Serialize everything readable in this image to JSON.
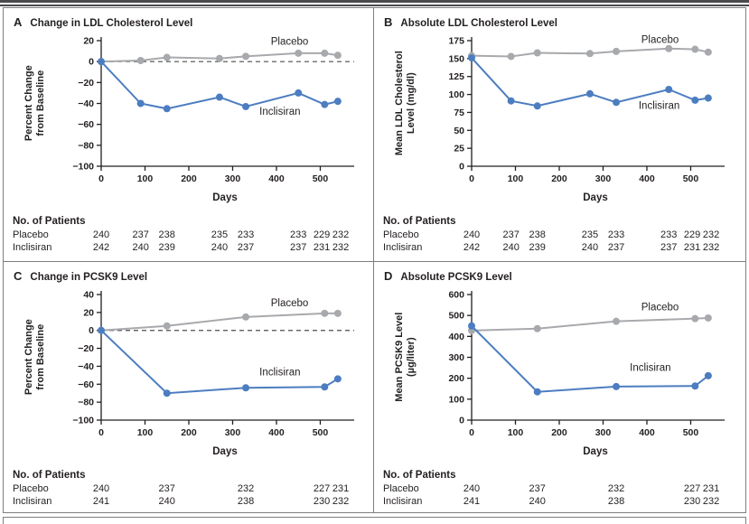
{
  "figure_colors": {
    "placebo": "#a7a9ac",
    "inclisiran": "#4c7dc0",
    "axis": "#231f20",
    "frame": "#7d7f82"
  },
  "chart_data": [
    {
      "panel_letter": "A",
      "title": "Change in LDL Cholesterol Level",
      "type": "line",
      "ylabel_lines": [
        "Percent Change",
        "from Baseline"
      ],
      "xlabel": "Days",
      "x": [
        0,
        90,
        150,
        270,
        330,
        450,
        510,
        540
      ],
      "xlim": [
        0,
        565
      ],
      "xticks": [
        0,
        100,
        200,
        300,
        400,
        500
      ],
      "ylim": [
        -100,
        20
      ],
      "yticks": [
        20,
        0,
        -20,
        -40,
        -60,
        -80,
        -100
      ],
      "zero_line_dashed": true,
      "series": [
        {
          "name": "Placebo",
          "color": "#a7a9ac",
          "values": [
            0,
            1,
            4,
            3,
            5,
            8,
            8,
            6
          ],
          "label_at": {
            "x": 430,
            "y": 16
          }
        },
        {
          "name": "Inclisiran",
          "color": "#4c7dc0",
          "values": [
            0,
            -40,
            -45,
            -34,
            -43,
            -30,
            -41,
            -38
          ],
          "label_at": {
            "x": 408,
            "y": -51
          }
        }
      ],
      "patients": {
        "header": "No. of Patients",
        "columns_days": [
          0,
          90,
          150,
          270,
          330,
          450,
          510,
          540
        ],
        "rows": [
          {
            "label": "Placebo",
            "values": [
              240,
              237,
              238,
              235,
              233,
              233,
              229,
              232
            ]
          },
          {
            "label": "Inclisiran",
            "values": [
              242,
              240,
              239,
              240,
              237,
              237,
              231,
              232
            ]
          }
        ]
      }
    },
    {
      "panel_letter": "B",
      "title": "Absolute LDL Cholesterol Level",
      "type": "line",
      "ylabel_lines": [
        "Mean LDL Cholesterol",
        "Level (mg/dl)"
      ],
      "xlabel": "Days",
      "x": [
        0,
        90,
        150,
        270,
        330,
        450,
        510,
        540
      ],
      "xlim": [
        0,
        565
      ],
      "xticks": [
        0,
        100,
        200,
        300,
        400,
        500
      ],
      "ylim": [
        0,
        175
      ],
      "yticks": [
        175,
        150,
        125,
        100,
        75,
        50,
        25,
        0
      ],
      "zero_line_dashed": false,
      "series": [
        {
          "name": "Placebo",
          "color": "#a7a9ac",
          "values": [
            154,
            153,
            158,
            157,
            160,
            164,
            163,
            159
          ],
          "label_at": {
            "x": 430,
            "y": 172
          }
        },
        {
          "name": "Inclisiran",
          "color": "#4c7dc0",
          "values": [
            151,
            91,
            84,
            101,
            89,
            107,
            92,
            95
          ],
          "label_at": {
            "x": 428,
            "y": 80
          }
        }
      ],
      "patients": {
        "header": "No. of Patients",
        "columns_days": [
          0,
          90,
          150,
          270,
          330,
          450,
          510,
          540
        ],
        "rows": [
          {
            "label": "Placebo",
            "values": [
              240,
              237,
              238,
              235,
              233,
              233,
              229,
              232
            ]
          },
          {
            "label": "Inclisiran",
            "values": [
              242,
              240,
              239,
              240,
              237,
              237,
              231,
              232
            ]
          }
        ]
      }
    },
    {
      "panel_letter": "C",
      "title": "Change in PCSK9 Level",
      "type": "line",
      "ylabel_lines": [
        "Percent Change",
        "from Baseline"
      ],
      "xlabel": "Days",
      "x": [
        0,
        150,
        330,
        510,
        540
      ],
      "xlim": [
        0,
        565
      ],
      "xticks": [
        0,
        100,
        200,
        300,
        400,
        500
      ],
      "ylim": [
        -100,
        40
      ],
      "yticks": [
        40,
        20,
        0,
        -20,
        -40,
        -60,
        -80,
        -100
      ],
      "zero_line_dashed": true,
      "series": [
        {
          "name": "Placebo",
          "color": "#a7a9ac",
          "values": [
            0,
            5,
            15,
            19,
            19
          ],
          "label_at": {
            "x": 430,
            "y": 27
          }
        },
        {
          "name": "Inclisiran",
          "color": "#4c7dc0",
          "values": [
            0,
            -70,
            -64,
            -63,
            -54
          ],
          "label_at": {
            "x": 408,
            "y": -50
          }
        }
      ],
      "patients": {
        "header": "No. of Patients",
        "columns_days": [
          0,
          150,
          330,
          510,
          540
        ],
        "rows": [
          {
            "label": "Placebo",
            "values": [
              240,
              237,
              232,
              227,
              231
            ]
          },
          {
            "label": "Inclisiran",
            "values": [
              241,
              240,
              238,
              230,
              232
            ]
          }
        ]
      }
    },
    {
      "panel_letter": "D",
      "title": "Absolute PCSK9 Level",
      "type": "line",
      "ylabel_lines": [
        "Mean PCSK9 Level",
        "(µg/liter)"
      ],
      "xlabel": "Days",
      "x": [
        0,
        150,
        330,
        510,
        540
      ],
      "xlim": [
        0,
        565
      ],
      "xticks": [
        0,
        100,
        200,
        300,
        400,
        500
      ],
      "ylim": [
        0,
        600
      ],
      "yticks": [
        600,
        500,
        400,
        300,
        200,
        100,
        0
      ],
      "zero_line_dashed": false,
      "series": [
        {
          "name": "Placebo",
          "color": "#a7a9ac",
          "values": [
            428,
            437,
            472,
            485,
            488
          ],
          "label_at": {
            "x": 430,
            "y": 525
          }
        },
        {
          "name": "Inclisiran",
          "color": "#4c7dc0",
          "values": [
            450,
            135,
            160,
            163,
            212
          ],
          "label_at": {
            "x": 408,
            "y": 235
          }
        }
      ],
      "patients": {
        "header": "No. of Patients",
        "columns_days": [
          0,
          150,
          330,
          510,
          540
        ],
        "rows": [
          {
            "label": "Placebo",
            "values": [
              240,
              237,
              232,
              227,
              231
            ]
          },
          {
            "label": "Inclisiran",
            "values": [
              241,
              240,
              238,
              230,
              232
            ]
          }
        ]
      }
    }
  ]
}
